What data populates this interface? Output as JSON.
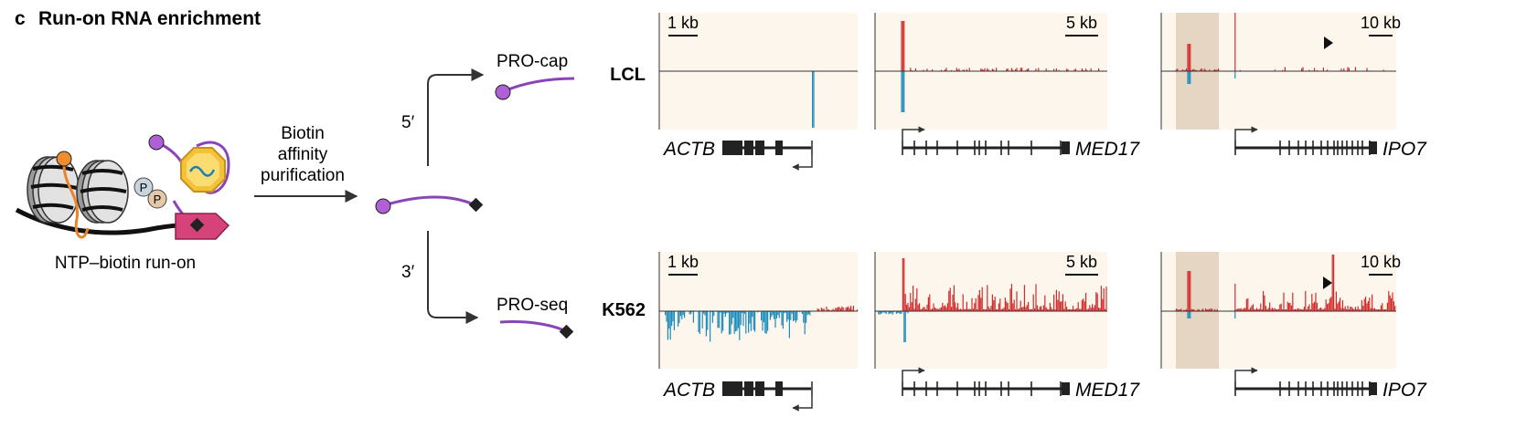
{
  "panel": {
    "letter": "c",
    "title": "Run-on RNA enrichment"
  },
  "schematic": {
    "runon_label": "NTP–biotin run-on",
    "phosphate_label": "P",
    "arrow_label": [
      "Biotin",
      "affinity",
      "purification"
    ],
    "end5_label": "5′",
    "end3_label": "3′",
    "top_product": "PRO-cap",
    "bottom_product": "PRO-seq"
  },
  "tracks": {
    "rows": [
      {
        "cell_line": "LCL",
        "method": "PRO-cap"
      },
      {
        "cell_line": "K562",
        "method": "PRO-seq"
      }
    ],
    "genes": [
      {
        "name": "ACTB",
        "scale_bar": "1 kb",
        "strand": "minus"
      },
      {
        "name": "MED17",
        "scale_bar": "5 kb",
        "strand": "plus"
      },
      {
        "name": "IPO7",
        "scale_bar": "10 kb",
        "strand": "plus"
      }
    ],
    "colors": {
      "plus_strand": "#d42a2a",
      "minus_strand": "#1b8bbd",
      "track_bg": "#fdf6ec",
      "highlight": "#e4d6c3"
    }
  }
}
